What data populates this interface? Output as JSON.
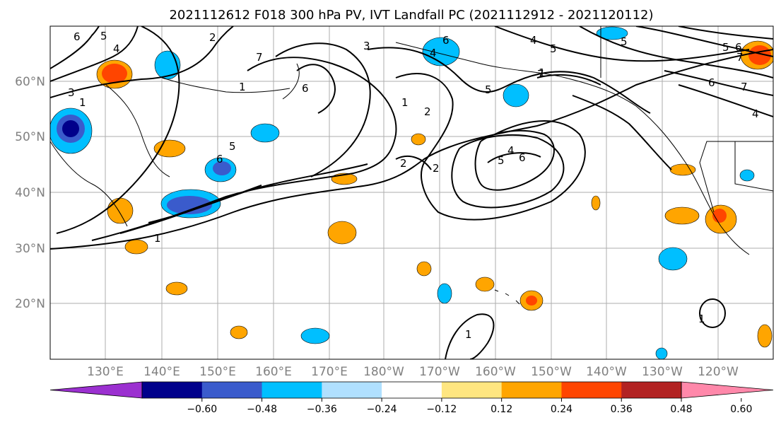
{
  "title": "2021112612 F018 300 hPa PV, IVT Landfall PC (2021112912 - 2021120112)",
  "map": {
    "lat_labels": [
      "60°N",
      "50°N",
      "40°N",
      "30°N",
      "20°N"
    ],
    "lon_labels": [
      "130°E",
      "140°E",
      "150°E",
      "160°E",
      "170°E",
      "180°W",
      "170°W",
      "160°W",
      "150°W",
      "140°W",
      "130°W",
      "120°W"
    ],
    "contour_labels": [
      "6",
      "5",
      "4",
      "3",
      "1",
      "2",
      "7",
      "3",
      "6",
      "5",
      "6",
      "4",
      "5",
      "2",
      "5",
      "7",
      "6",
      "4",
      "5",
      "6",
      "1",
      "7",
      "1",
      "2",
      "1",
      "5",
      "4",
      "6",
      "2",
      "1",
      "6",
      "5",
      "4",
      "7",
      "1",
      "1"
    ],
    "colors": {
      "neg_strong": "#00008b",
      "neg_mid": "#3a5bcc",
      "neg": "#00bfff",
      "neg_light": "#b0e0ff",
      "pos_light": "#ffe680",
      "pos": "#ffa500",
      "pos_mid": "#ff4500",
      "pos_strong": "#b22222"
    }
  },
  "colorbar": {
    "ticks": [
      "−0.60",
      "−0.48",
      "−0.36",
      "−0.24",
      "−0.12",
      "0.12",
      "0.24",
      "0.36",
      "0.48",
      "0.60"
    ],
    "bins": [
      "#9b30d0",
      "#00008b",
      "#3a5bcc",
      "#00bfff",
      "#b0e0ff",
      "#ffffff",
      "#ffe680",
      "#ffa500",
      "#ff4500",
      "#b22222",
      "#ff88aa"
    ]
  }
}
